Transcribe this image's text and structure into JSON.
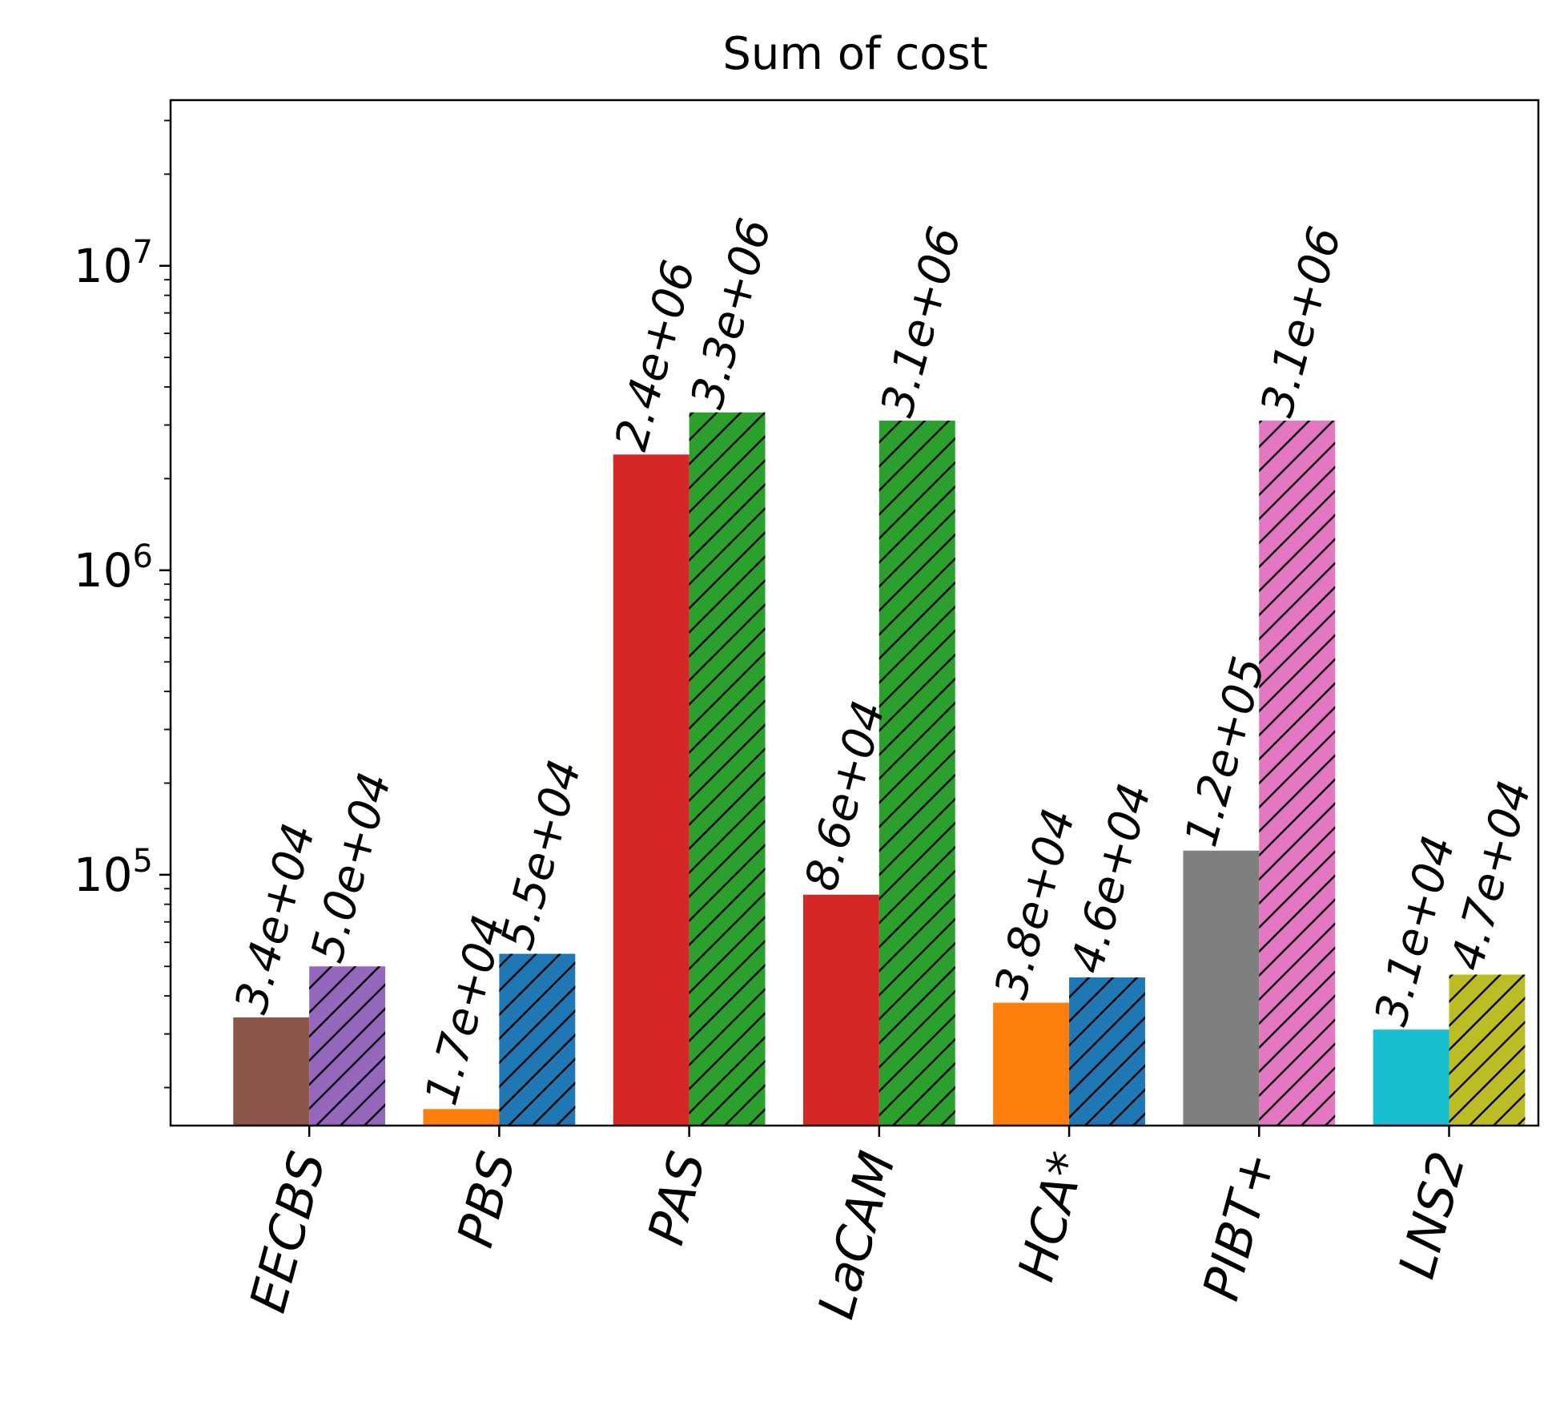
{
  "chart_data": {
    "type": "bar",
    "title": "Sum of cost",
    "yscale": "log",
    "ylim": [
      15000,
      35000000
    ],
    "yticks": [
      {
        "value": 100000,
        "base": "10",
        "exp": "5"
      },
      {
        "value": 1000000,
        "base": "10",
        "exp": "6"
      },
      {
        "value": 10000000,
        "base": "10",
        "exp": "7"
      }
    ],
    "xlabel": "",
    "ylabel": "",
    "categories": [
      "EECBS",
      "PBS",
      "PAS",
      "LaCAM",
      "HCA*",
      "PIBT+",
      "LNS2"
    ],
    "series": [
      {
        "name": "left",
        "hatch": false,
        "values": [
          34000,
          17000,
          2400000,
          86000,
          38000,
          120000,
          31000
        ],
        "labels": [
          "3.4e+04",
          "1.7e+04",
          "2.4e+06",
          "8.6e+04",
          "3.8e+04",
          "1.2e+05",
          "3.1e+04"
        ],
        "colors": [
          "#8c564b",
          "#ff7f0e",
          "#d62728",
          "#d62728",
          "#ff7f0e",
          "#7f7f7f",
          "#17becf"
        ]
      },
      {
        "name": "right",
        "hatch": true,
        "values": [
          50000,
          55000,
          3300000,
          3100000,
          46000,
          3100000,
          47000
        ],
        "labels": [
          "5.0e+04",
          "5.5e+04",
          "3.3e+06",
          "3.1e+06",
          "4.6e+04",
          "3.1e+06",
          "4.7e+04"
        ],
        "colors": [
          "#9467bd",
          "#1f77b4",
          "#2ca02c",
          "#2ca02c",
          "#1f77b4",
          "#e377c2",
          "#bcbd22"
        ]
      }
    ]
  }
}
